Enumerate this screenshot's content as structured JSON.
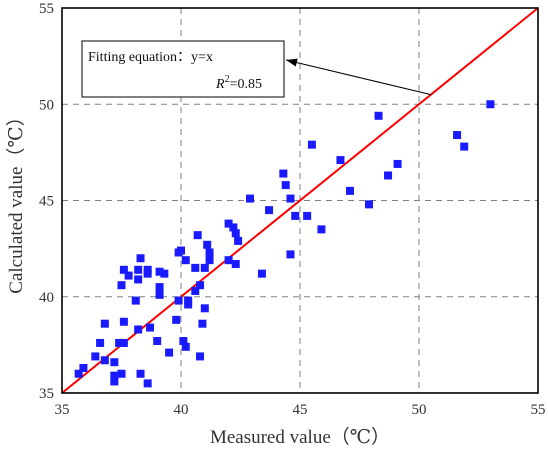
{
  "chart_data": {
    "type": "scatter",
    "xlabel": "Measured value（℃）",
    "ylabel": "Calculated value（℃）",
    "xlim": [
      35,
      55
    ],
    "ylim": [
      35,
      55
    ],
    "xticks": [
      35,
      40,
      45,
      50,
      55
    ],
    "yticks": [
      35,
      40,
      45,
      50,
      55
    ],
    "grid": true,
    "series": [
      {
        "marker": "square",
        "color": "#1a1aff",
        "points": [
          [
            35.7,
            36.0
          ],
          [
            35.9,
            36.3
          ],
          [
            36.4,
            36.9
          ],
          [
            36.6,
            37.6
          ],
          [
            36.8,
            36.7
          ],
          [
            36.8,
            38.6
          ],
          [
            37.2,
            35.6
          ],
          [
            37.2,
            35.9
          ],
          [
            37.2,
            36.6
          ],
          [
            37.4,
            37.6
          ],
          [
            37.5,
            36.0
          ],
          [
            37.5,
            40.6
          ],
          [
            37.6,
            37.6
          ],
          [
            37.6,
            38.7
          ],
          [
            37.6,
            41.4
          ],
          [
            37.8,
            41.1
          ],
          [
            38.1,
            39.8
          ],
          [
            38.2,
            38.3
          ],
          [
            38.2,
            40.9
          ],
          [
            38.2,
            41.4
          ],
          [
            38.3,
            42.0
          ],
          [
            38.3,
            36.0
          ],
          [
            38.6,
            41.4
          ],
          [
            38.6,
            41.2
          ],
          [
            38.6,
            35.5
          ],
          [
            38.7,
            38.4
          ],
          [
            39.0,
            37.7
          ],
          [
            39.1,
            40.1
          ],
          [
            39.1,
            40.5
          ],
          [
            39.1,
            41.3
          ],
          [
            39.3,
            41.2
          ],
          [
            39.5,
            37.1
          ],
          [
            39.8,
            38.8
          ],
          [
            39.9,
            42.3
          ],
          [
            39.9,
            39.8
          ],
          [
            40.0,
            42.4
          ],
          [
            40.1,
            37.7
          ],
          [
            40.2,
            37.4
          ],
          [
            40.2,
            41.9
          ],
          [
            40.3,
            39.6
          ],
          [
            40.3,
            39.8
          ],
          [
            40.6,
            40.3
          ],
          [
            40.6,
            41.5
          ],
          [
            40.7,
            43.2
          ],
          [
            40.8,
            36.9
          ],
          [
            40.8,
            40.6
          ],
          [
            40.9,
            38.6
          ],
          [
            41.0,
            39.4
          ],
          [
            41.0,
            41.5
          ],
          [
            41.1,
            42.7
          ],
          [
            41.2,
            42.3
          ],
          [
            41.2,
            41.9
          ],
          [
            42.0,
            43.8
          ],
          [
            42.0,
            41.9
          ],
          [
            42.2,
            43.6
          ],
          [
            42.3,
            43.3
          ],
          [
            42.3,
            41.7
          ],
          [
            42.4,
            42.9
          ],
          [
            42.9,
            45.1
          ],
          [
            43.4,
            41.2
          ],
          [
            43.7,
            44.5
          ],
          [
            44.3,
            46.4
          ],
          [
            44.4,
            45.8
          ],
          [
            44.6,
            45.1
          ],
          [
            44.6,
            42.2
          ],
          [
            44.8,
            44.2
          ],
          [
            45.3,
            44.2
          ],
          [
            45.5,
            47.9
          ],
          [
            45.9,
            43.5
          ],
          [
            46.7,
            47.1
          ],
          [
            47.1,
            45.5
          ],
          [
            47.9,
            44.8
          ],
          [
            48.3,
            49.4
          ],
          [
            48.7,
            46.3
          ],
          [
            49.1,
            46.9
          ],
          [
            51.6,
            48.4
          ],
          [
            51.9,
            47.8
          ],
          [
            53.0,
            50.0
          ]
        ]
      }
    ],
    "fit_line": {
      "from": [
        35,
        35
      ],
      "to": [
        55,
        55
      ],
      "color": "#ff0000"
    },
    "annotation": {
      "equation_text": "Fitting equation：y=x",
      "r2_prefix": "R",
      "r2_sup": "2",
      "r2_value": "=0.85",
      "arrow_target": [
        50.5,
        50.5
      ]
    }
  }
}
